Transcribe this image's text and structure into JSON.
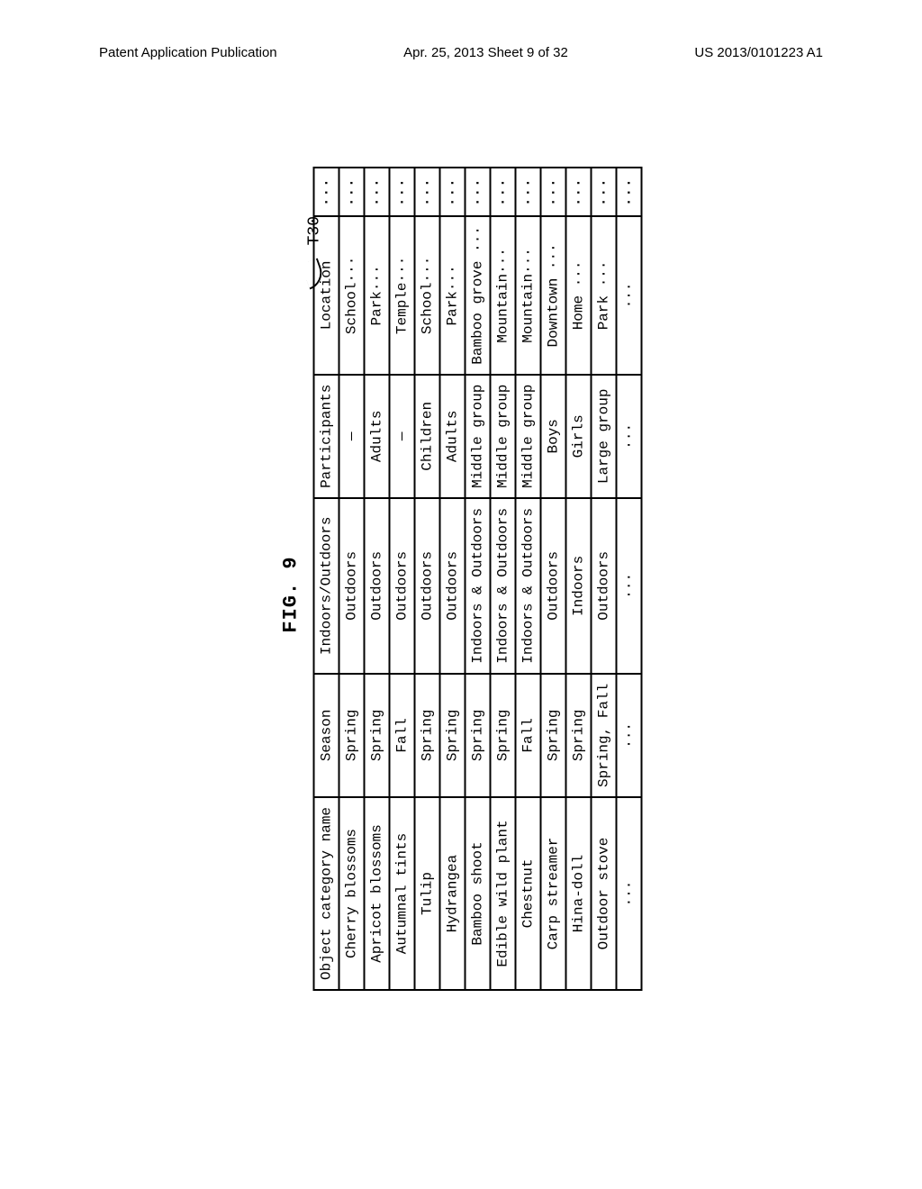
{
  "header": {
    "left": "Patent Application Publication",
    "center": "Apr. 25, 2013  Sheet 9 of 32",
    "right": "US 2013/0101223 A1"
  },
  "figure": {
    "title": "FIG. 9",
    "callout": "T30"
  },
  "table": {
    "columns": [
      "Object category name",
      "Season",
      "Indoors/Outdoors",
      "Participants",
      "Location",
      "···"
    ],
    "rows": [
      {
        "obj": "Cherry blossoms",
        "season": "Spring",
        "io": "Outdoors",
        "part": "—",
        "loc": "School···",
        "dots": "···"
      },
      {
        "obj": "Apricot blossoms",
        "season": "Spring",
        "io": "Outdoors",
        "part": "Adults",
        "loc": "Park···",
        "dots": "···"
      },
      {
        "obj": "Autumnal tints",
        "season": "Fall",
        "io": "Outdoors",
        "part": "—",
        "loc": "Temple···",
        "dots": "···"
      },
      {
        "obj": "Tulip",
        "season": "Spring",
        "io": "Outdoors",
        "part": "Children",
        "loc": "School···",
        "dots": "···"
      },
      {
        "obj": "Hydrangea",
        "season": "Spring",
        "io": "Outdoors",
        "part": "Adults",
        "loc": "Park···",
        "dots": "···"
      },
      {
        "obj": "Bamboo shoot",
        "season": "Spring",
        "io": "Indoors & Outdoors",
        "part": "Middle group",
        "loc": "Bamboo grove ···",
        "dots": "···"
      },
      {
        "obj": "Edible wild plant",
        "season": "Spring",
        "io": "Indoors & Outdoors",
        "part": "Middle group",
        "loc": "Mountain···",
        "dots": "···"
      },
      {
        "obj": "Chestnut",
        "season": "Fall",
        "io": "Indoors & Outdoors",
        "part": "Middle group",
        "loc": "Mountain···",
        "dots": "···"
      },
      {
        "obj": "Carp streamer",
        "season": "Spring",
        "io": "Outdoors",
        "part": "Boys",
        "loc": "Downtown ···",
        "dots": "···"
      },
      {
        "obj": "Hina-doll",
        "season": "Spring",
        "io": "Indoors",
        "part": "Girls",
        "loc": "Home ···",
        "dots": "···"
      },
      {
        "obj": "Outdoor stove",
        "season": "Spring, Fall",
        "io": "Outdoors",
        "part": "Large group",
        "loc": "Park ···",
        "dots": "···"
      },
      {
        "obj": "···",
        "season": "···",
        "io": "···",
        "part": "···",
        "loc": "···",
        "dots": "···"
      }
    ]
  }
}
